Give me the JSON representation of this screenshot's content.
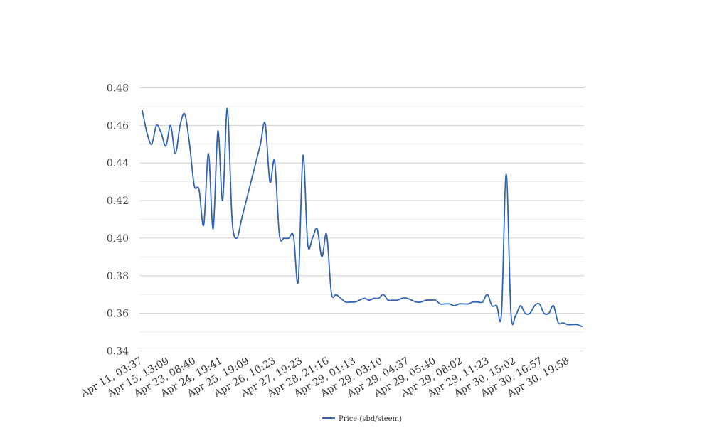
{
  "chart_data": {
    "type": "line",
    "ylim": [
      0.34,
      0.48
    ],
    "y_major_ticks": [
      "0.34",
      "0.36",
      "0.38",
      "0.40",
      "0.42",
      "0.44",
      "0.46",
      "0.48"
    ],
    "grid": true,
    "legend_placement": "bottom-center",
    "x_tick_labels": [
      "Apr 11, 03:37",
      "Apr 15, 13:09",
      "Apr 23, 08:40",
      "Apr 24, 19:41",
      "Apr 25, 19:09",
      "Apr 26, 10:23",
      "Apr 27, 19:23",
      "Apr 28, 21:16",
      "Apr 29, 01:13",
      "Apr 29, 03:10",
      "Apr 29, 04:37",
      "Apr 29, 05:40",
      "Apr 29, 08:02",
      "Apr 29, 11:23",
      "Apr 30, 15:02",
      "Apr 30, 16:57",
      "Apr 30, 19:58"
    ],
    "series": [
      {
        "name": "Price (sbd/steem)",
        "color": "#3264b4",
        "values": [
          0.468,
          0.456,
          0.45,
          0.46,
          0.456,
          0.449,
          0.46,
          0.445,
          0.46,
          0.466,
          0.45,
          0.428,
          0.426,
          0.407,
          0.445,
          0.405,
          0.457,
          0.42,
          0.469,
          0.41,
          0.4,
          0.41,
          0.42,
          0.43,
          0.44,
          0.45,
          0.461,
          0.43,
          0.441,
          0.402,
          0.4,
          0.4,
          0.401,
          0.377,
          0.444,
          0.397,
          0.4,
          0.405,
          0.39,
          0.402,
          0.371,
          0.37,
          0.368,
          0.366,
          0.366,
          0.366,
          0.367,
          0.368,
          0.367,
          0.368,
          0.368,
          0.37,
          0.367,
          0.367,
          0.367,
          0.368,
          0.368,
          0.367,
          0.366,
          0.366,
          0.367,
          0.367,
          0.367,
          0.365,
          0.365,
          0.365,
          0.364,
          0.365,
          0.365,
          0.365,
          0.366,
          0.366,
          0.366,
          0.37,
          0.364,
          0.364,
          0.36,
          0.434,
          0.36,
          0.359,
          0.364,
          0.36,
          0.36,
          0.364,
          0.365,
          0.36,
          0.36,
          0.364,
          0.355,
          0.355,
          0.354,
          0.354,
          0.354,
          0.353
        ]
      }
    ]
  }
}
